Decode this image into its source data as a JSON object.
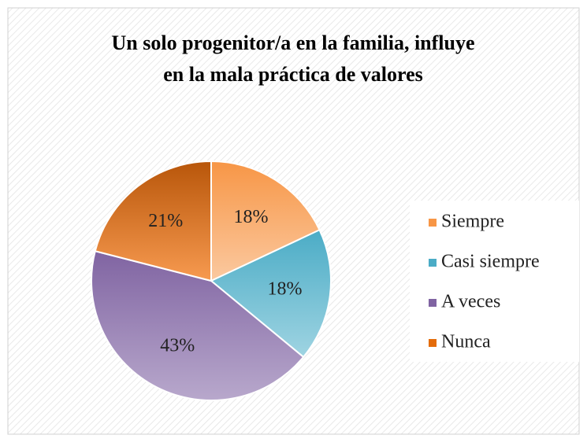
{
  "chart_data": {
    "type": "pie",
    "title": "Un solo progenitor/a en la familia, influye en la mala práctica de valores",
    "title_lines": [
      "Un solo progenitor/a en la familia, influye",
      "en la mala práctica de valores"
    ],
    "categories": [
      "Siempre",
      "Casi siempre",
      "A veces",
      "Nunca"
    ],
    "values": [
      18,
      18,
      43,
      21
    ],
    "value_labels": [
      "18%",
      "18%",
      "43%",
      "21%"
    ],
    "colors": [
      "#f79646",
      "#4bacc6",
      "#8064a2",
      "#e46c0a"
    ],
    "legend": "right"
  }
}
